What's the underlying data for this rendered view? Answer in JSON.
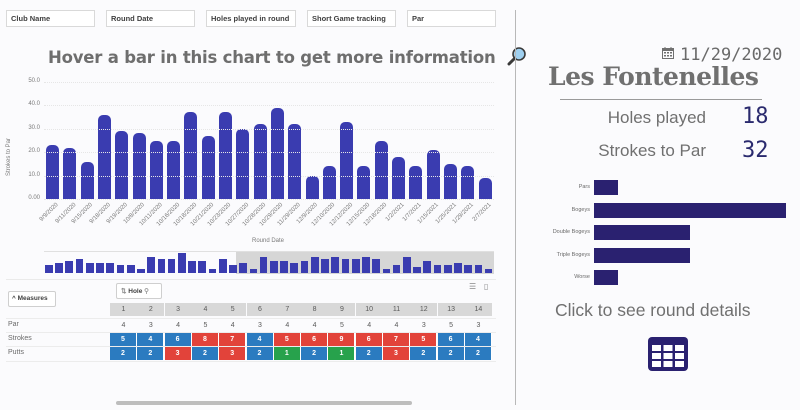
{
  "filters": [
    {
      "label": "Club Name"
    },
    {
      "label": "Round Date"
    },
    {
      "label": "Holes played in round"
    },
    {
      "label": "Short Game tracking"
    },
    {
      "label": "Par"
    }
  ],
  "main_chart": {
    "title": "Hover a bar in this chart to get more information",
    "title_icon": "magnifier-icon",
    "ylabel": "Strokes to Par",
    "xlabel": "Round Date",
    "y_ticks": [
      "50.0",
      "40.0",
      "30.0",
      "20.0",
      "10.0",
      "0.00"
    ],
    "bar_color": "#3a3cb0"
  },
  "chart_data": [
    {
      "type": "bar",
      "title": "Hover a bar in this chart to get more information",
      "xlabel": "Round Date",
      "ylabel": "Strokes to Par",
      "ylim": [
        0,
        50
      ],
      "grid": true,
      "categories": [
        "9/9/2020",
        "9/11/2020",
        "9/15/2020",
        "9/18/2020",
        "9/19/2020",
        "10/8/2020",
        "10/11/2020",
        "10/16/2020",
        "10/18/2020",
        "10/21/2020",
        "10/23/2020",
        "10/27/2020",
        "10/28/2020",
        "10/29/2020",
        "11/29/2020",
        "12/9/2020",
        "12/10/2020",
        "12/12/2020",
        "12/15/2020",
        "12/18/2020",
        "1/2/2021",
        "1/7/2021",
        "1/15/2021",
        "1/25/2021",
        "1/29/2021",
        "2/7/2021"
      ],
      "values": [
        23,
        22,
        16,
        36,
        29,
        28,
        25,
        25,
        37,
        27,
        37,
        30,
        32,
        39,
        32,
        10,
        14,
        33,
        14,
        25,
        18,
        14,
        21,
        15,
        14,
        9
      ]
    },
    {
      "type": "bar",
      "orientation": "horizontal",
      "title": "",
      "categories": [
        "Pars",
        "Bogeys",
        "Double Bogeys",
        "Triple Bogeys",
        "Worse"
      ],
      "values": [
        1,
        8,
        4,
        4,
        1
      ],
      "bar_color": "#2a2170"
    }
  ],
  "mini_chart": {
    "values": [
      4,
      5,
      6,
      7,
      5,
      5,
      5,
      4,
      4,
      2,
      8,
      7,
      7,
      10,
      6,
      6,
      2,
      7,
      4,
      5,
      2,
      8,
      6,
      6,
      5,
      6,
      8,
      7,
      8,
      7,
      7,
      8,
      7,
      2,
      4,
      8,
      3,
      6,
      4,
      4,
      5,
      4,
      4,
      2
    ],
    "selection_start_index": 19
  },
  "table": {
    "measures_label": "Measures",
    "dimension_label": "Hole",
    "holes": [
      "1",
      "2",
      "3",
      "4",
      "5",
      "6",
      "7",
      "8",
      "9",
      "10",
      "11",
      "12",
      "13",
      "14"
    ],
    "rows": [
      {
        "label": "Par",
        "values": [
          "4",
          "3",
          "4",
          "5",
          "4",
          "3",
          "4",
          "4",
          "5",
          "4",
          "4",
          "3",
          "5",
          "3"
        ],
        "colors": []
      },
      {
        "label": "Strokes",
        "values": [
          "5",
          "4",
          "6",
          "8",
          "7",
          "4",
          "5",
          "6",
          "9",
          "6",
          "7",
          "5",
          "6",
          "4"
        ],
        "colors": [
          "blue",
          "blue",
          "blue",
          "red",
          "red",
          "blue",
          "red",
          "red",
          "red",
          "red",
          "red",
          "red",
          "blue",
          "blue"
        ]
      },
      {
        "label": "Putts",
        "values": [
          "2",
          "2",
          "3",
          "2",
          "3",
          "2",
          "1",
          "2",
          "1",
          "2",
          "3",
          "2",
          "2",
          "2"
        ],
        "colors": [
          "blue",
          "blue",
          "red",
          "blue",
          "red",
          "blue",
          "green",
          "blue",
          "green",
          "blue",
          "red",
          "blue",
          "blue",
          "blue"
        ]
      }
    ],
    "colors": {
      "blue": "#2b7bc0",
      "red": "#e2433a",
      "green": "#27a24c"
    }
  },
  "summary": {
    "date": "11/29/2020",
    "date_icon": "calendar-icon",
    "club_name": "Les Fontenelles",
    "holes_played_label": "Holes played",
    "holes_played_value": "18",
    "strokes_to_par_label": "Strokes to Par",
    "strokes_to_par_value": "32",
    "score_breakdown": [
      {
        "label": "Pars",
        "value": 1
      },
      {
        "label": "Bogeys",
        "value": 8
      },
      {
        "label": "Double Bogeys",
        "value": 4
      },
      {
        "label": "Triple Bogeys",
        "value": 4
      },
      {
        "label": "Worse",
        "value": 1
      }
    ],
    "details_label": "Click to see round details",
    "details_icon": "table-grid-icon",
    "accent_color": "#2a2170"
  }
}
